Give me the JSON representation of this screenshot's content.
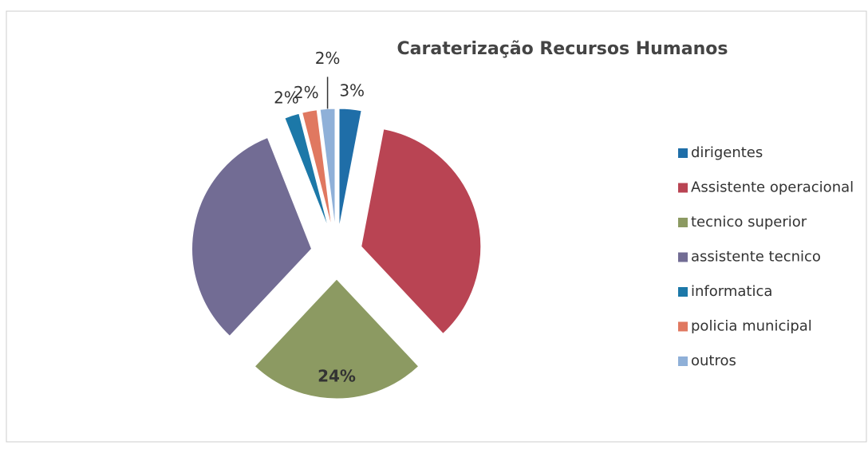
{
  "chart_data": {
    "type": "pie",
    "title": "Caraterização Recursos Humanos",
    "categories": [
      "dirigentes",
      "Assistente operacional",
      "tecnico superior",
      "assistente tecnico",
      "informatica",
      "policia municipal",
      "outros"
    ],
    "values": [
      3,
      35,
      24,
      32,
      2,
      2,
      2
    ],
    "value_labels": [
      "3%",
      null,
      "24%",
      null,
      "2%",
      "2%",
      "2%"
    ],
    "colors": [
      "#1f6ea8",
      "#b94453",
      "#8c9a62",
      "#726c94",
      "#1c78a8",
      "#e07860",
      "#8fb0d8"
    ],
    "exploded": true,
    "legend": "right"
  }
}
